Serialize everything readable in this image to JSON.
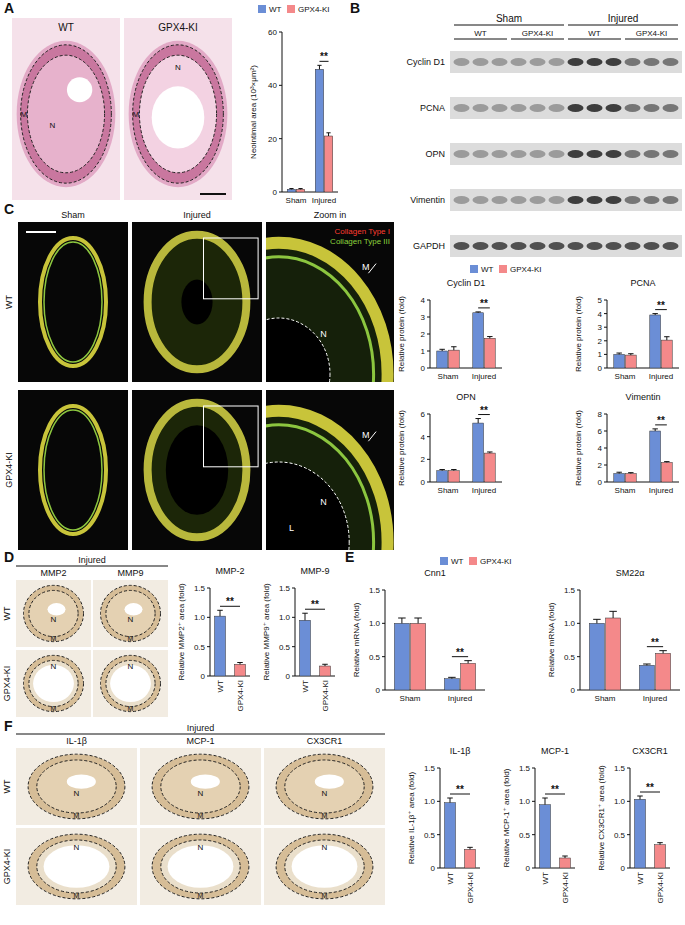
{
  "figure": {
    "panel_labels": [
      "A",
      "B",
      "C",
      "D",
      "E",
      "F"
    ],
    "A": {
      "columns": [
        "WT",
        "GPX4-KI"
      ],
      "regions": [
        "M",
        "N"
      ]
    },
    "B": {
      "groups": [
        "Sham",
        "Injured"
      ],
      "lanes": [
        "WT",
        "GPX4-KI"
      ],
      "proteins": [
        "Cyclin D1",
        "PCNA",
        "OPN",
        "Vimentin",
        "GAPDH"
      ]
    },
    "C": {
      "columns": [
        "Sham",
        "Injured",
        "Zoom in"
      ],
      "rows": [
        "WT",
        "GPX4-KI"
      ],
      "stains": [
        "Collagen Type I",
        "Collagen Type III"
      ],
      "regions": [
        "N",
        "M",
        "L"
      ]
    },
    "D": {
      "heading": "Injured",
      "stains": [
        "MMP2",
        "MMP9"
      ],
      "rows": [
        "WT",
        "GPX4-KI"
      ],
      "regions": [
        "N",
        "M"
      ]
    },
    "F": {
      "heading": "Injured",
      "stains": [
        "IL-1β",
        "MCP-1",
        "CX3CR1"
      ],
      "rows": [
        "WT",
        "GPX4-KI"
      ],
      "regions": [
        "N",
        "M"
      ]
    }
  },
  "chart_data": [
    {
      "type": "bar",
      "y_label": "Neointimal area (10³×μm²)",
      "categories": [
        "Sham",
        "Injured"
      ],
      "series": [
        {
          "name": "WT",
          "color": "#6b8ed6",
          "values": [
            1,
            46
          ],
          "errors": [
            0.3,
            1.5
          ]
        },
        {
          "name": "GPX4-KI",
          "color": "#f4898a",
          "values": [
            1,
            21
          ],
          "errors": [
            0.3,
            1.2
          ]
        }
      ],
      "ylim": [
        0,
        60
      ],
      "yticks": [
        0,
        20,
        40,
        60
      ],
      "legend": "top",
      "annotations": [
        {
          "text": "**",
          "x": "Injured"
        }
      ]
    },
    {
      "type": "bar",
      "title": "Cyclin D1",
      "y_label": "Relative protein (fold)",
      "categories": [
        "Sham",
        "Injured"
      ],
      "series": [
        {
          "name": "WT",
          "color": "#6b8ed6",
          "values": [
            1,
            3.25
          ],
          "errors": [
            0.1,
            0.05
          ]
        },
        {
          "name": "GPX4-KI",
          "color": "#f4898a",
          "values": [
            1.05,
            1.75
          ],
          "errors": [
            0.2,
            0.1
          ]
        }
      ],
      "ylim": [
        0,
        4
      ],
      "yticks": [
        0,
        1,
        2,
        3,
        4
      ],
      "legend": "top",
      "annotations": [
        {
          "text": "**",
          "x": "Injured"
        }
      ]
    },
    {
      "type": "bar",
      "title": "PCNA",
      "y_label": "Relative protein (fold)",
      "categories": [
        "Sham",
        "Injured"
      ],
      "series": [
        {
          "name": "WT",
          "color": "#6b8ed6",
          "values": [
            1,
            3.9
          ],
          "errors": [
            0.1,
            0.1
          ]
        },
        {
          "name": "GPX4-KI",
          "color": "#f4898a",
          "values": [
            0.95,
            2.05
          ],
          "errors": [
            0.1,
            0.25
          ]
        }
      ],
      "ylim": [
        0,
        5
      ],
      "yticks": [
        0,
        1,
        2,
        3,
        4,
        5
      ],
      "annotations": [
        {
          "text": "**",
          "x": "Injured"
        }
      ]
    },
    {
      "type": "bar",
      "title": "OPN",
      "y_label": "Relative protein (fold)",
      "categories": [
        "Sham",
        "Injured"
      ],
      "series": [
        {
          "name": "WT",
          "color": "#6b8ed6",
          "values": [
            1,
            5.2
          ],
          "errors": [
            0.1,
            0.4
          ]
        },
        {
          "name": "GPX4-KI",
          "color": "#f4898a",
          "values": [
            1,
            2.55
          ],
          "errors": [
            0.1,
            0.1
          ]
        }
      ],
      "ylim": [
        0,
        6
      ],
      "yticks": [
        0,
        2,
        4,
        6
      ],
      "annotations": [
        {
          "text": "**",
          "x": "Injured"
        }
      ]
    },
    {
      "type": "bar",
      "title": "Vimentin",
      "y_label": "Relative protein (fold)",
      "categories": [
        "Sham",
        "Injured"
      ],
      "series": [
        {
          "name": "WT",
          "color": "#6b8ed6",
          "values": [
            1,
            6
          ],
          "errors": [
            0.15,
            0.25
          ]
        },
        {
          "name": "GPX4-KI",
          "color": "#f4898a",
          "values": [
            1,
            2.3
          ],
          "errors": [
            0.1,
            0.1
          ]
        }
      ],
      "ylim": [
        0,
        8
      ],
      "yticks": [
        0,
        2,
        4,
        6,
        8
      ],
      "annotations": [
        {
          "text": "**",
          "x": "Injured"
        }
      ]
    },
    {
      "type": "bar",
      "title": "MMP-2",
      "y_label": "Relative MMP2⁺ area (fold)",
      "categories": [
        "WT",
        "GPX4-KI"
      ],
      "values": [
        1.02,
        0.2
      ],
      "errors": [
        0.1,
        0.03
      ],
      "colors": [
        "#6b8ed6",
        "#f4898a"
      ],
      "ylim": [
        0,
        1.5
      ],
      "yticks": [
        0,
        0.5,
        {
          "value": 1,
          "label": "1.0"
        },
        1.5
      ],
      "annotations": [
        {
          "text": "**"
        }
      ]
    },
    {
      "type": "bar",
      "title": "MMP-9",
      "y_label": "Relative MMP9⁺ area (fold)",
      "categories": [
        "WT",
        "GPX4-KI"
      ],
      "values": [
        0.95,
        0.17
      ],
      "errors": [
        0.12,
        0.03
      ],
      "colors": [
        "#6b8ed6",
        "#f4898a"
      ],
      "ylim": [
        0,
        1.5
      ],
      "yticks": [
        0,
        0.5,
        {
          "value": 1,
          "label": "1.0"
        },
        1.5
      ],
      "annotations": [
        {
          "text": "**"
        }
      ]
    },
    {
      "type": "bar",
      "title": "Cnn1",
      "y_label": "Relative mRNA (fold)",
      "categories": [
        "Sham",
        "Injured"
      ],
      "series": [
        {
          "name": "WT",
          "color": "#6b8ed6",
          "values": [
            1,
            0.17
          ],
          "errors": [
            0.08,
            0.02
          ]
        },
        {
          "name": "GPX4-KI",
          "color": "#f4898a",
          "values": [
            1,
            0.4
          ],
          "errors": [
            0.08,
            0.04
          ]
        }
      ],
      "ylim": [
        0,
        1.5
      ],
      "yticks": [
        0,
        0.5,
        {
          "value": 1,
          "label": "1.0"
        },
        1.5
      ],
      "legend": "top",
      "annotations": [
        {
          "text": "**",
          "x": "Injured"
        }
      ]
    },
    {
      "type": "bar",
      "title": "SM22α",
      "y_label": "Relative mRNA (fold)",
      "categories": [
        "Sham",
        "Injured"
      ],
      "series": [
        {
          "name": "WT",
          "color": "#6b8ed6",
          "values": [
            1,
            0.37
          ],
          "errors": [
            0.06,
            0.02
          ]
        },
        {
          "name": "GPX4-KI",
          "color": "#f4898a",
          "values": [
            1.08,
            0.55
          ],
          "errors": [
            0.1,
            0.04
          ]
        }
      ],
      "ylim": [
        0,
        1.5
      ],
      "yticks": [
        0,
        0.5,
        {
          "value": 1,
          "label": "1.0"
        },
        1.5
      ],
      "annotations": [
        {
          "text": "**",
          "x": "Injured"
        }
      ]
    },
    {
      "type": "bar",
      "title": "IL-1β",
      "y_label": "Relative IL-1β⁺ area (fold)",
      "categories": [
        "WT",
        "GPX4-KI"
      ],
      "values": [
        0.98,
        0.28
      ],
      "errors": [
        0.07,
        0.03
      ],
      "colors": [
        "#6b8ed6",
        "#f4898a"
      ],
      "ylim": [
        0,
        1.5
      ],
      "yticks": [
        0,
        0.5,
        {
          "value": 1,
          "label": "1.0"
        },
        1.5
      ],
      "annotations": [
        {
          "text": "**"
        }
      ]
    },
    {
      "type": "bar",
      "title": "MCP-1",
      "y_label": "Relative MCP-1⁺ area (fold)",
      "categories": [
        "WT",
        "GPX4-KI"
      ],
      "values": [
        0.95,
        0.15
      ],
      "errors": [
        0.1,
        0.03
      ],
      "colors": [
        "#6b8ed6",
        "#f4898a"
      ],
      "ylim": [
        0,
        1.5
      ],
      "yticks": [
        0,
        0.5,
        {
          "value": 1,
          "label": "1.0"
        },
        1.5
      ],
      "annotations": [
        {
          "text": "**"
        }
      ]
    },
    {
      "type": "bar",
      "title": "CX3CR1",
      "y_label": "Relative CX3CR1⁺ area (fold)",
      "categories": [
        "WT",
        "GPX4-KI"
      ],
      "values": [
        1.03,
        0.35
      ],
      "errors": [
        0.05,
        0.03
      ],
      "colors": [
        "#6b8ed6",
        "#f4898a"
      ],
      "ylim": [
        0,
        1.5
      ],
      "yticks": [
        0,
        0.5,
        {
          "value": 1,
          "label": "1.0"
        },
        1.5
      ],
      "annotations": [
        {
          "text": "**"
        }
      ]
    }
  ]
}
